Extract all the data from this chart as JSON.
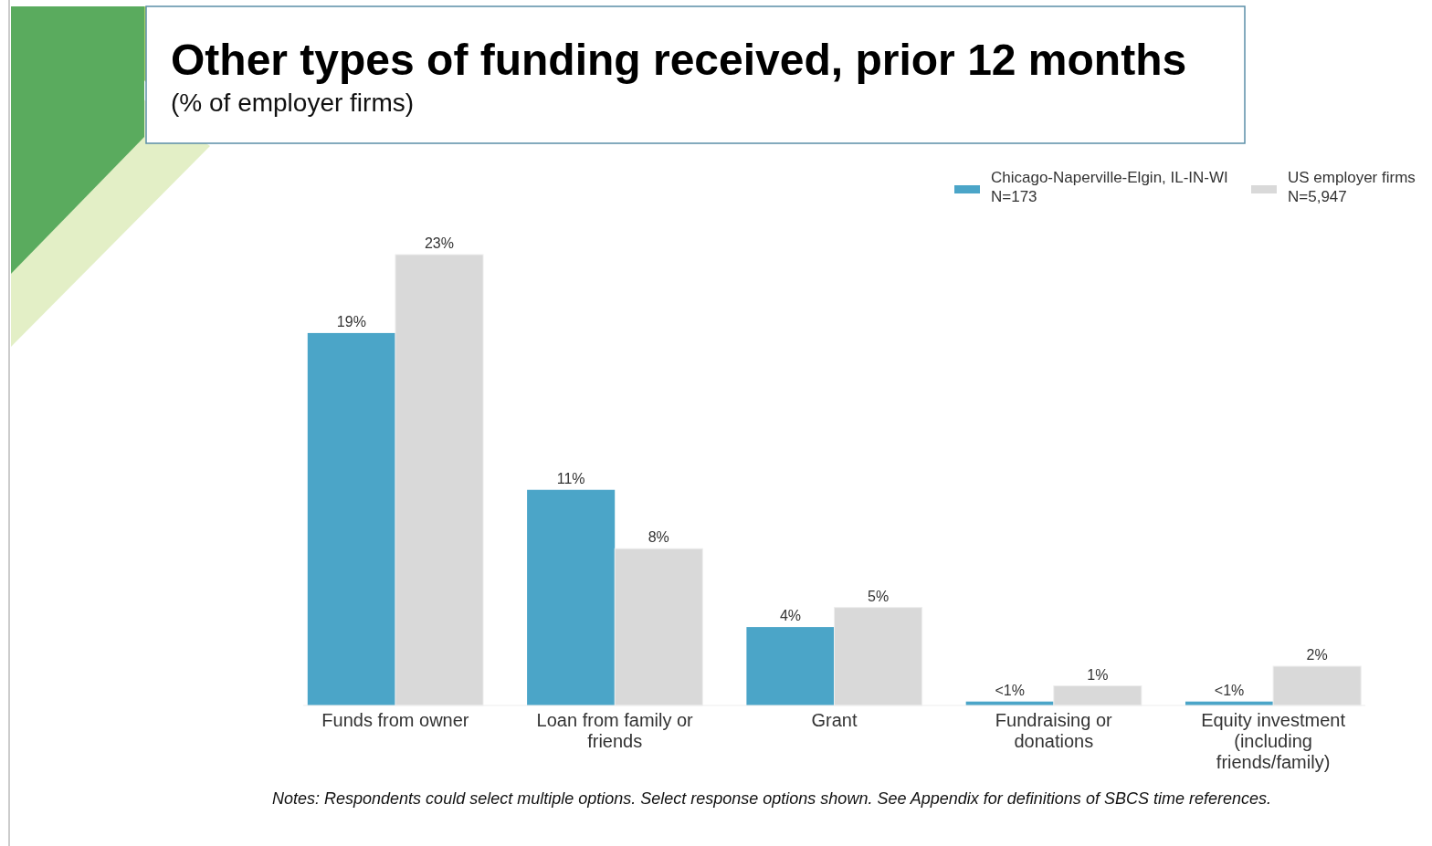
{
  "chart_data": {
    "type": "bar",
    "title": "Other types of funding received, prior 12 months",
    "subtitle": "(% of employer firms)",
    "categories": [
      "Funds from owner",
      "Loan from family or friends",
      "Grant",
      "Fundraising or donations",
      "Equity investment (including friends/family)"
    ],
    "series": [
      {
        "name": "Chicago-Naperville-Elgin, IL-IN-WI\nN=173",
        "color": "#4ba5c8",
        "values": [
          19,
          11,
          4,
          0.2,
          0.2
        ],
        "value_labels": [
          "19%",
          "11%",
          "4%",
          "<1%",
          "<1%"
        ]
      },
      {
        "name": "US employer firms\nN=5,947",
        "color": "#d9d9d9",
        "values": [
          23,
          8,
          5,
          1,
          2
        ],
        "value_labels": [
          "23%",
          "8%",
          "5%",
          "1%",
          "2%"
        ]
      }
    ],
    "ylim": [
      0,
      23
    ],
    "legend": "top right",
    "annotations": [
      "Notes: Respondents could select multiple options. Select response options shown. See Appendix for definitions of SBCS time references."
    ]
  }
}
